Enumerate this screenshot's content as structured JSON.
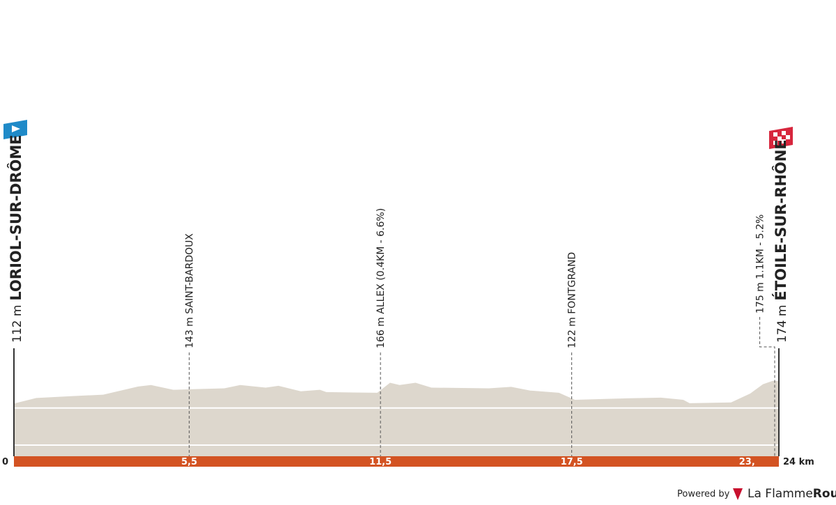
{
  "chart_data": {
    "type": "profile",
    "x": [
      0,
      0.7,
      1.8,
      2.8,
      3.9,
      4.3,
      5.0,
      5.7,
      6.6,
      7.1,
      7.9,
      8.3,
      9.0,
      9.6,
      9.8,
      11.4,
      11.8,
      12.1,
      12.6,
      13.1,
      14.9,
      15.6,
      16.2,
      17.1,
      17.6,
      19.2,
      20.3,
      21.0,
      21.2,
      22.5,
      23.1,
      23.5,
      23.8,
      24.0
    ],
    "series": [
      {
        "color": "#ddd7cd",
        "values": [
          112,
          127,
          132,
          136,
          158,
          162,
          149,
          151,
          153,
          162,
          155,
          160,
          145,
          149,
          143,
          141,
          168,
          162,
          168,
          155,
          153,
          157,
          147,
          141,
          122,
          126,
          128,
          122,
          113,
          115,
          139,
          164,
          173,
          173
        ]
      }
    ],
    "xlim": [
      0,
      24
    ],
    "xticks": [
      0,
      {
        "value": 5.5,
        "label": "5,5"
      },
      {
        "value": 11.5,
        "label": "11,5"
      },
      {
        "value": 17.5,
        "label": "17,5"
      },
      {
        "value": 23,
        "label": "23,"
      },
      {
        "value": 24,
        "label": "24 km"
      }
    ],
    "ylim": [
      -30,
      400
    ],
    "yticks": [
      0,
      100
    ],
    "grid": true,
    "axis_color": "#d35322",
    "annotations": [
      {
        "km": 0,
        "elevation": "112 m",
        "name": "LORIOL-SUR-DRÔME"
      },
      {
        "km": 5.5,
        "text": "143 m SAINT-BARDOUX"
      },
      {
        "km": 11.5,
        "text": "166 m ALLEX (0.4KM - 6.6%)"
      },
      {
        "km": 17.5,
        "text": "122 m FONTGRAND"
      },
      {
        "km": 23.4,
        "text": "175 m 1.1KM - 5.2%"
      },
      {
        "km": 24,
        "elevation": "174 m",
        "name": "ÉTOILE-SUR-RHÔNE"
      }
    ],
    "footer": {
      "powered": "Powered by",
      "brand_a": "La Flamme",
      "brand_b": "Rouge"
    }
  }
}
